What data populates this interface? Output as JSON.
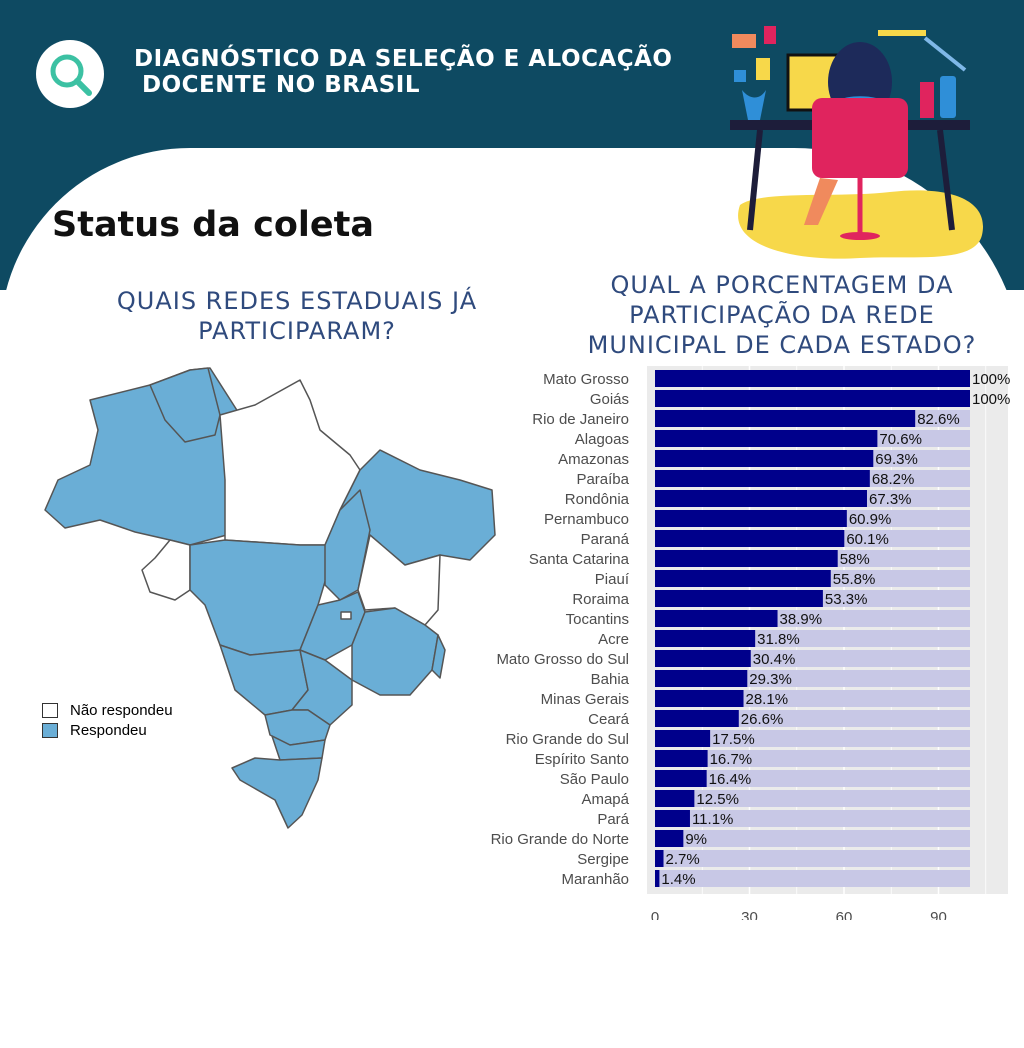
{
  "header": {
    "title_line_1": "DIAGNÓSTICO DA SELEÇÃO E ALOCAÇÃO",
    "title_line_2": "DOCENTE NO BRASIL",
    "logo_icon": "magnifier-icon",
    "illustration": "person-at-desk-illustration",
    "background_color": "#0e4a62"
  },
  "section_title": "Status da coleta",
  "map_chart": {
    "heading": "QUAIS REDES ESTADUAIS JÁ PARTICIPARAM?",
    "legend": [
      {
        "label": "Não respondeu",
        "color": "#ffffff"
      },
      {
        "label": "Respondeu",
        "color": "#6aaed6"
      }
    ]
  },
  "bar_chart": {
    "heading": "QUAL A PORCENTAGEM DA PARTICIPAÇÃO DA REDE MUNICIPAL DE CADA ESTADO?"
  },
  "chart_data": [
    {
      "type": "map",
      "title": "QUAIS REDES ESTADUAIS JÁ PARTICIPARAM?",
      "legend": [
        "Não respondeu",
        "Respondeu"
      ]
    },
    {
      "type": "bar",
      "orientation": "horizontal",
      "title": "QUAL A PORCENTAGEM DA PARTICIPAÇÃO DA REDE MUNICIPAL DE CADA ESTADO?",
      "categories": [
        "Mato Grosso",
        "Goiás",
        "Rio de Janeiro",
        "Alagoas",
        "Amazonas",
        "Paraíba",
        "Rondônia",
        "Pernambuco",
        "Paraná",
        "Santa Catarina",
        "Piauí",
        "Roraima",
        "Tocantins",
        "Acre",
        "Mato Grosso do Sul",
        "Bahia",
        "Minas Gerais",
        "Ceará",
        "Rio Grande do Sul",
        "Espírito Santo",
        "São Paulo",
        "Amapá",
        "Pará",
        "Rio Grande do Norte",
        "Sergipe",
        "Maranhão"
      ],
      "values": [
        100,
        100,
        82.6,
        70.6,
        69.3,
        68.2,
        67.3,
        60.9,
        60.1,
        58,
        55.8,
        53.3,
        38.9,
        31.8,
        30.4,
        29.3,
        28.1,
        26.6,
        17.5,
        16.7,
        16.4,
        12.5,
        11.1,
        9,
        2.7,
        1.4
      ],
      "labels": [
        "100%",
        "100%",
        "82.6%",
        "70.6%",
        "69.3%",
        "68.2%",
        "67.3%",
        "60.9%",
        "60.1%",
        "58%",
        "55.8%",
        "53.3%",
        "38.9%",
        "31.8%",
        "30.4%",
        "29.3%",
        "28.1%",
        "26.6%",
        "17.5%",
        "16.7%",
        "16.4%",
        "12.5%",
        "11.1%",
        "9%",
        "2.7%",
        "1.4%"
      ],
      "background_value": 100,
      "xlim": [
        0,
        100
      ],
      "xticks": [
        0,
        30,
        60,
        90
      ],
      "bar_color": "#00008b",
      "background_color": "#c8c8e6",
      "grid": true
    }
  ]
}
